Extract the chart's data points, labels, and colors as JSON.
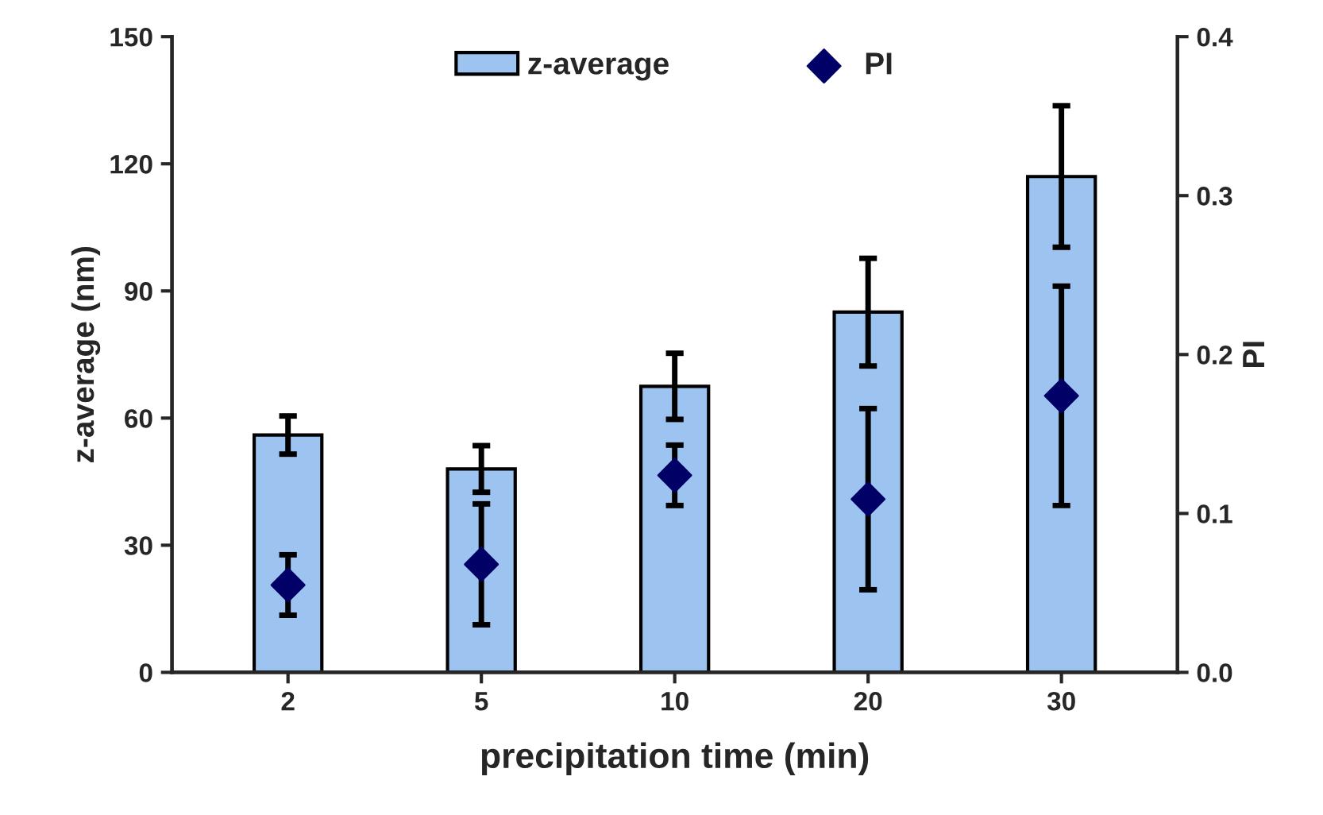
{
  "chart_data": {
    "type": "bar",
    "xlabel": "precipitation time (min)",
    "ylabel": "z-average (nm)",
    "y2label": "PI",
    "categories": [
      "2",
      "5",
      "10",
      "20",
      "30"
    ],
    "series": [
      {
        "name": "z-average",
        "color": "#9dc3f0",
        "values": [
          56,
          48,
          67.5,
          85,
          117
        ],
        "errors": [
          4.5,
          5.5,
          7.8,
          12.7,
          16.7
        ]
      },
      {
        "name": "PI",
        "type": "scatter",
        "axis": "y2",
        "color": "#000066",
        "marker": "diamond",
        "values": [
          0.055,
          0.068,
          0.124,
          0.109,
          0.174
        ],
        "errors": [
          0.019,
          0.038,
          0.019,
          0.057,
          0.069
        ]
      }
    ],
    "ylim": [
      0,
      150
    ],
    "yticks": [
      0,
      30,
      60,
      90,
      120,
      150
    ],
    "y2lim": [
      0,
      0.4
    ],
    "y2ticks": [
      {
        "value": 0,
        "label": "0.0"
      },
      0.1,
      0.2,
      0.3,
      0.4
    ],
    "grid": false,
    "legend": "top"
  }
}
